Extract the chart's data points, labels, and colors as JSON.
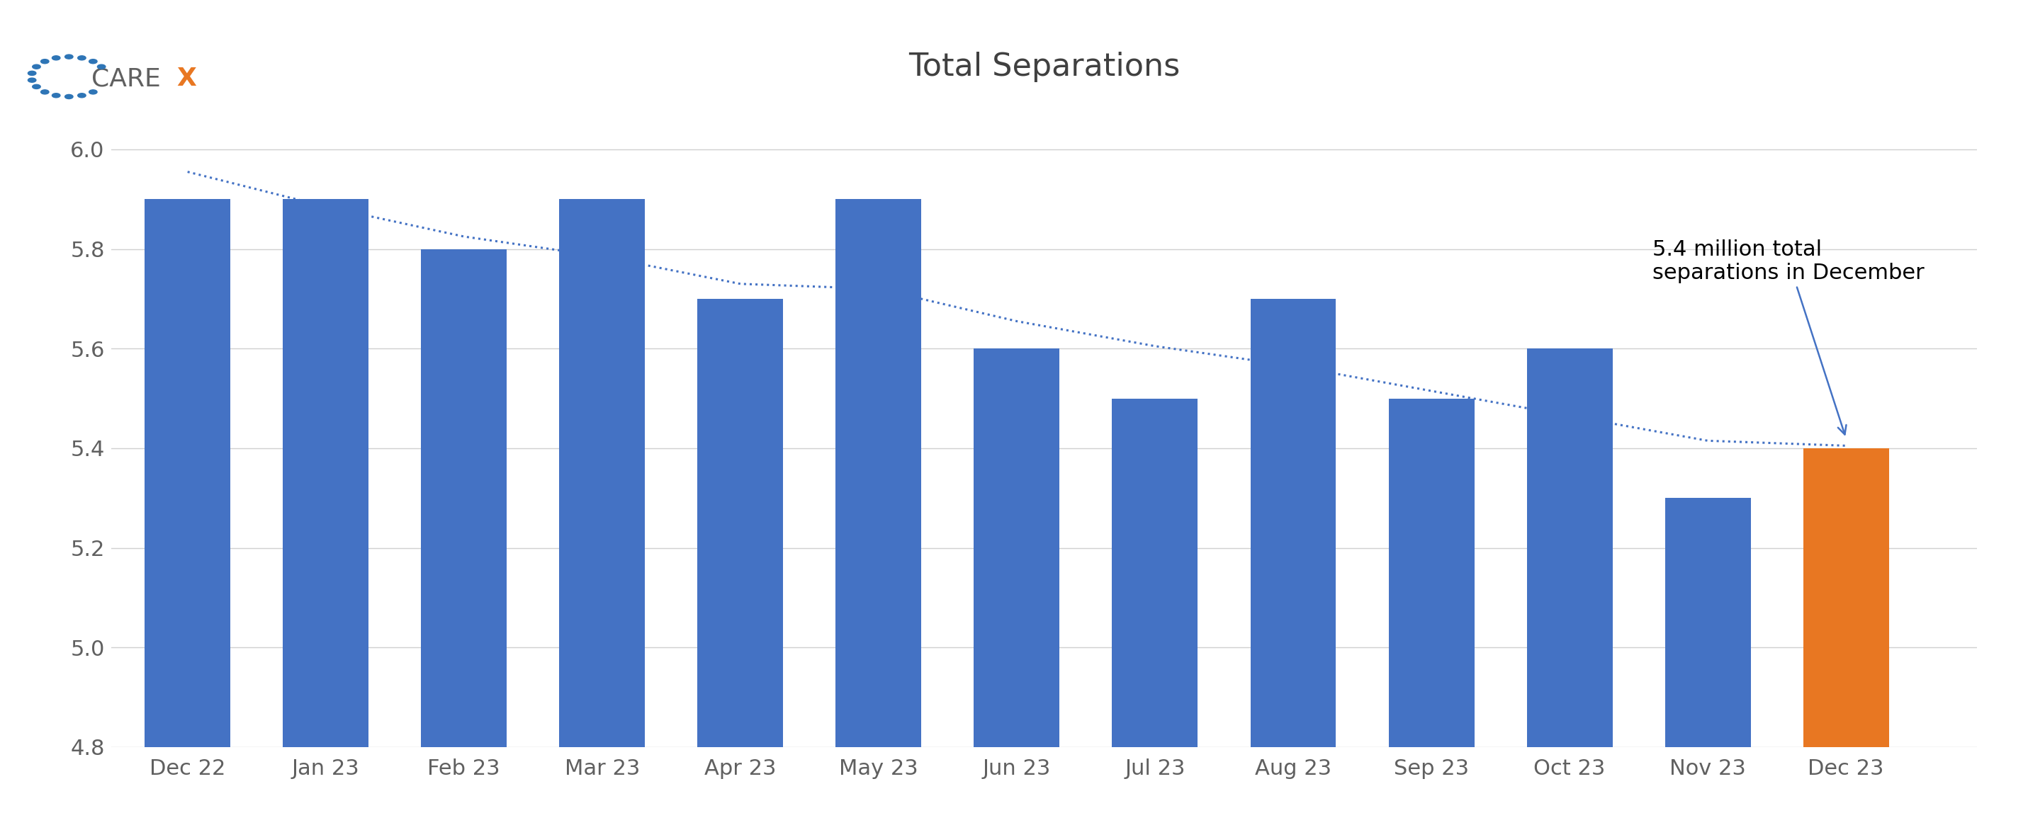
{
  "categories": [
    "Dec 22",
    "Jan 23",
    "Feb 23",
    "Mar 23",
    "Apr 23",
    "May 23",
    "Jun 23",
    "Jul 23",
    "Aug 23",
    "Sep 23",
    "Oct 23",
    "Nov 23",
    "Dec 23"
  ],
  "values": [
    5.9,
    5.9,
    5.8,
    5.9,
    5.7,
    5.9,
    5.6,
    5.5,
    5.7,
    5.5,
    5.6,
    5.3,
    5.4
  ],
  "bar_colors": [
    "#4472C4",
    "#4472C4",
    "#4472C4",
    "#4472C4",
    "#4472C4",
    "#4472C4",
    "#4472C4",
    "#4472C4",
    "#4472C4",
    "#4472C4",
    "#4472C4",
    "#4472C4",
    "#E87722"
  ],
  "title": "Total Separations",
  "title_fontsize": 32,
  "title_color": "#404040",
  "ylim": [
    4.8,
    6.1
  ],
  "yticks": [
    4.8,
    5.0,
    5.2,
    5.4,
    5.6,
    5.8,
    6.0
  ],
  "background_color": "#FFFFFF",
  "gridline_color": "#D0D0D0",
  "tick_color": "#606060",
  "trend_color": "#4472C4",
  "trend_y": [
    5.955,
    5.885,
    5.825,
    5.785,
    5.73,
    5.72,
    5.655,
    5.605,
    5.565,
    5.515,
    5.465,
    5.415,
    5.405
  ],
  "annotation_text": "5.4 million total\nseparations in December",
  "annotation_fontsize": 22,
  "logo_care_color": "#606060",
  "logo_x_color": "#E87722",
  "logo_dot_color": "#2E75B6",
  "bar_width": 0.62,
  "xlim": [
    -0.55,
    12.95
  ]
}
